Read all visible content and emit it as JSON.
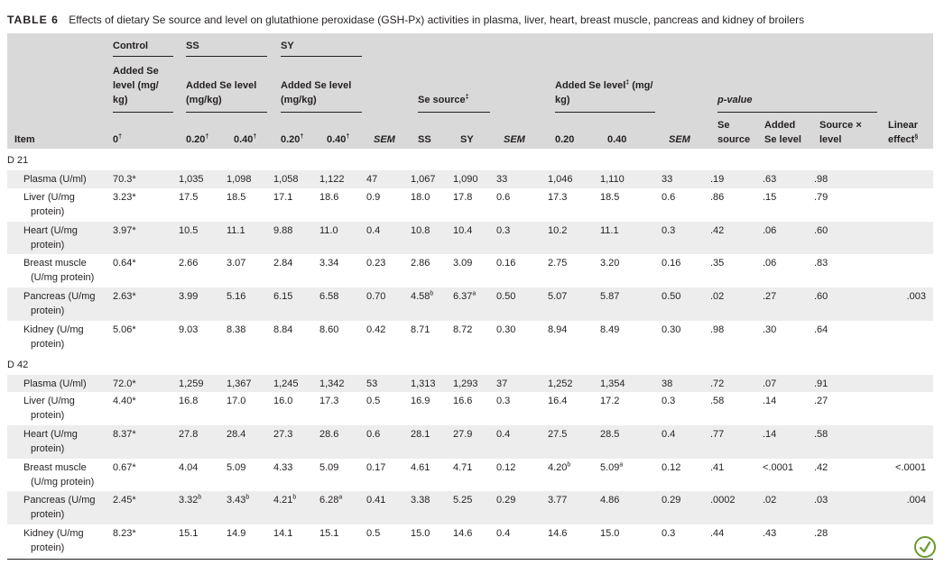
{
  "caption": {
    "label": "TABLE 6",
    "title": "Effects of dietary Se source and level on glutathione peroxidase (GSH-Px) activities in plasma, liver, heart, breast muscle, pancreas and kidney of broilers"
  },
  "header": {
    "control": "Control",
    "ss": "SS",
    "sy": "SY",
    "added_se_level_mgkg_control": "Added Se level (mg/ kg)",
    "added_se_level_ss": "Added Se level (mg/kg)",
    "added_se_level_sy": "Added Se level (mg/kg)",
    "se_source": "Se source",
    "se_source_mark": "‡",
    "added_se_level_main": "Added Se level",
    "added_se_level_main_mark": "‡",
    "added_se_level_main_unit": " (mg/ kg)",
    "p_value": "p-value",
    "item": "Item",
    "dose_control": "0",
    "dose_control_mark": "†",
    "ss_020": "0.20",
    "ss_040": "0.40",
    "sy_020": "0.20",
    "sy_040": "0.40",
    "dose_mark": "†",
    "sem": "SEM",
    "src_ss": "SS",
    "src_sy": "SY",
    "lvl_020": "0.20",
    "lvl_040": "0.40",
    "se_source_col": "Se source",
    "added_se_level_col": "Added Se level",
    "source_x_level": "Source × level",
    "linear_effect": "Linear effect",
    "linear_effect_mark": "§"
  },
  "sections": [
    {
      "label": "D 21",
      "rows": [
        {
          "item1": "Plasma (U/ml)",
          "item2": "",
          "c": "70.3*",
          "s1": "1,035",
          "s2": "1,098",
          "y1": "1,058",
          "y2": "1,122",
          "sem1": "47",
          "src_ss": "1,067",
          "src_sy": "1,090",
          "sem2": "33",
          "l1": "1,046",
          "l2": "1,110",
          "sem3": "33",
          "p_src": ".19",
          "p_lvl": ".63",
          "p_int": ".98",
          "lin": ""
        },
        {
          "item1": "Liver (U/mg",
          "item2": "protein)",
          "c": "3.23*",
          "s1": "17.5",
          "s2": "18.5",
          "y1": "17.1",
          "y2": "18.6",
          "sem1": "0.9",
          "src_ss": "18.0",
          "src_sy": "17.8",
          "sem2": "0.6",
          "l1": "17.3",
          "l2": "18.5",
          "sem3": "0.6",
          "p_src": ".86",
          "p_lvl": ".15",
          "p_int": ".79",
          "lin": ""
        },
        {
          "item1": "Heart (U/mg",
          "item2": "protein)",
          "c": "3.97*",
          "s1": "10.5",
          "s2": "11.1",
          "y1": "9.88",
          "y2": "11.0",
          "sem1": "0.4",
          "src_ss": "10.8",
          "src_sy": "10.4",
          "sem2": "0.3",
          "l1": "10.2",
          "l2": "11.1",
          "sem3": "0.3",
          "p_src": ".42",
          "p_lvl": ".06",
          "p_int": ".60",
          "lin": ""
        },
        {
          "item1": "Breast muscle",
          "item2": "(U/mg protein)",
          "c": "0.64*",
          "s1": "2.66",
          "s2": "3.07",
          "y1": "2.84",
          "y2": "3.34",
          "sem1": "0.23",
          "src_ss": "2.86",
          "src_sy": "3.09",
          "sem2": "0.16",
          "l1": "2.75",
          "l2": "3.20",
          "sem3": "0.16",
          "p_src": ".35",
          "p_lvl": ".06",
          "p_int": ".83",
          "lin": ""
        },
        {
          "item1": "Pancreas (U/mg",
          "item2": "protein)",
          "c": "2.63*",
          "s1": "3.99",
          "s2": "5.16",
          "y1": "6.15",
          "y2": "6.58",
          "sem1": "0.70",
          "src_ss": "4.58",
          "src_ss_sup": "b",
          "src_sy": "6.37",
          "src_sy_sup": "a",
          "sem2": "0.50",
          "l1": "5.07",
          "l2": "5.87",
          "sem3": "0.50",
          "p_src": ".02",
          "p_lvl": ".27",
          "p_int": ".60",
          "lin": ".003"
        },
        {
          "item1": "Kidney (U/mg",
          "item2": "protein)",
          "c": "5.06*",
          "s1": "9.03",
          "s2": "8.38",
          "y1": "8.84",
          "y2": "8.60",
          "sem1": "0.42",
          "src_ss": "8.71",
          "src_sy": "8.72",
          "sem2": "0.30",
          "l1": "8.94",
          "l2": "8.49",
          "sem3": "0.30",
          "p_src": ".98",
          "p_lvl": ".30",
          "p_int": ".64",
          "lin": ""
        }
      ]
    },
    {
      "label": "D 42",
      "rows": [
        {
          "item1": "Plasma (U/ml)",
          "item2": "",
          "c": "72.0*",
          "s1": "1,259",
          "s2": "1,367",
          "y1": "1,245",
          "y2": "1,342",
          "sem1": "53",
          "src_ss": "1,313",
          "src_sy": "1,293",
          "sem2": "37",
          "l1": "1,252",
          "l2": "1,354",
          "sem3": "38",
          "p_src": ".72",
          "p_lvl": ".07",
          "p_int": ".91",
          "lin": ""
        },
        {
          "item1": "Liver (U/mg",
          "item2": "protein)",
          "c": "4.40*",
          "s1": "16.8",
          "s2": "17.0",
          "y1": "16.0",
          "y2": "17.3",
          "sem1": "0.5",
          "src_ss": "16.9",
          "src_sy": "16.6",
          "sem2": "0.3",
          "l1": "16.4",
          "l2": "17.2",
          "sem3": "0.3",
          "p_src": ".58",
          "p_lvl": ".14",
          "p_int": ".27",
          "lin": ""
        },
        {
          "item1": "Heart (U/mg",
          "item2": "protein)",
          "c": "8.37*",
          "s1": "27.8",
          "s2": "28.4",
          "y1": "27.3",
          "y2": "28.6",
          "sem1": "0.6",
          "src_ss": "28.1",
          "src_sy": "27.9",
          "sem2": "0.4",
          "l1": "27.5",
          "l2": "28.5",
          "sem3": "0.4",
          "p_src": ".77",
          "p_lvl": ".14",
          "p_int": ".58",
          "lin": ""
        },
        {
          "item1": "Breast muscle",
          "item2": "(U/mg protein)",
          "c": "0.67*",
          "s1": "4.04",
          "s2": "5.09",
          "y1": "4.33",
          "y2": "5.09",
          "sem1": "0.17",
          "src_ss": "4.61",
          "src_sy": "4.71",
          "sem2": "0.12",
          "l1": "4.20",
          "l1_sup": "b",
          "l2": "5.09",
          "l2_sup": "a",
          "sem3": "0.12",
          "p_src": ".41",
          "p_lvl": "<.0001",
          "p_int": ".42",
          "lin": "<.0001"
        },
        {
          "item1": "Pancreas (U/mg",
          "item2": "protein)",
          "c": "2.45*",
          "s1": "3.32",
          "s1_sup": "b",
          "s2": "3.43",
          "s2_sup": "b",
          "y1": "4.21",
          "y1_sup": "b",
          "y2": "6.28",
          "y2_sup": "a",
          "sem1": "0.41",
          "src_ss": "3.38",
          "src_sy": "5.25",
          "sem2": "0.29",
          "l1": "3.77",
          "l2": "4.86",
          "sem3": "0.29",
          "p_src": ".0002",
          "p_lvl": ".02",
          "p_int": ".03",
          "lin": ".004"
        },
        {
          "item1": "Kidney (U/mg",
          "item2": "protein)",
          "c": "8.23*",
          "s1": "15.1",
          "s2": "14.9",
          "y1": "14.1",
          "y2": "15.1",
          "sem1": "0.5",
          "src_ss": "15.0",
          "src_sy": "14.6",
          "sem2": "0.4",
          "l1": "14.6",
          "l2": "15.0",
          "sem3": "0.3",
          "p_src": ".44",
          "p_lvl": ".43",
          "p_int": ".28",
          "lin": ""
        }
      ]
    }
  ],
  "badge": {
    "icon": "leaf-check-icon",
    "color": "#6a9a2e"
  }
}
